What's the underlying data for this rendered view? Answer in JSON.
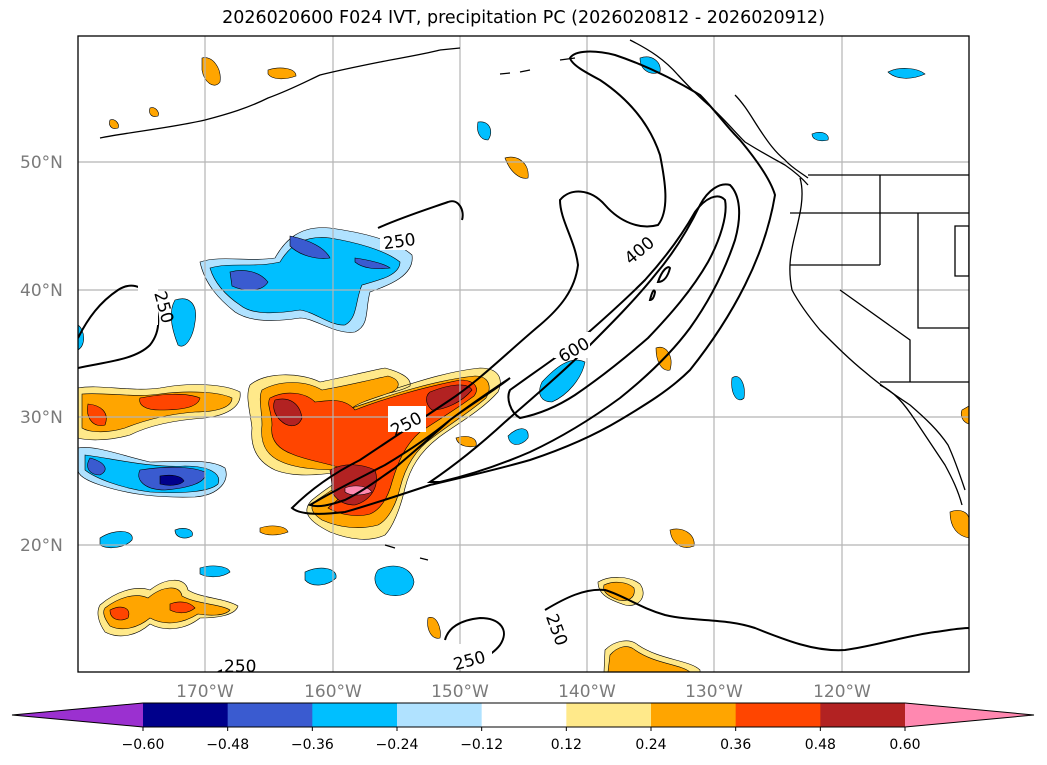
{
  "title": "2026020600 F024 IVT, precipitation PC (2026020812 - 2026020912)",
  "map": {
    "latitude_labels": [
      "50°N",
      "40°N",
      "30°N",
      "20°N"
    ],
    "longitude_labels": [
      "170°W",
      "160°W",
      "150°W",
      "140°W",
      "130°W",
      "120°W"
    ],
    "ivt_contour_labels": [
      "250",
      "250",
      "400",
      "600",
      "250",
      "250",
      "250",
      "250"
    ],
    "ivt_contour_levels": [
      250,
      400,
      600
    ],
    "grid": true
  },
  "colorbar": {
    "extend": "both",
    "colors": [
      "#9b30d0",
      "#00008b",
      "#3a5bd0",
      "#00bfff",
      "#b0e2ff",
      "#ffffff",
      "#ffe98a",
      "#ffa500",
      "#ff4500",
      "#b22222",
      "#ff88b0"
    ],
    "tick_labels": [
      "−0.60",
      "−0.48",
      "−0.36",
      "−0.24",
      "−0.12",
      "0.12",
      "0.24",
      "0.36",
      "0.48",
      "0.60"
    ]
  },
  "colors": {
    "coast": "#000000",
    "grid": "#b5b5b5"
  }
}
